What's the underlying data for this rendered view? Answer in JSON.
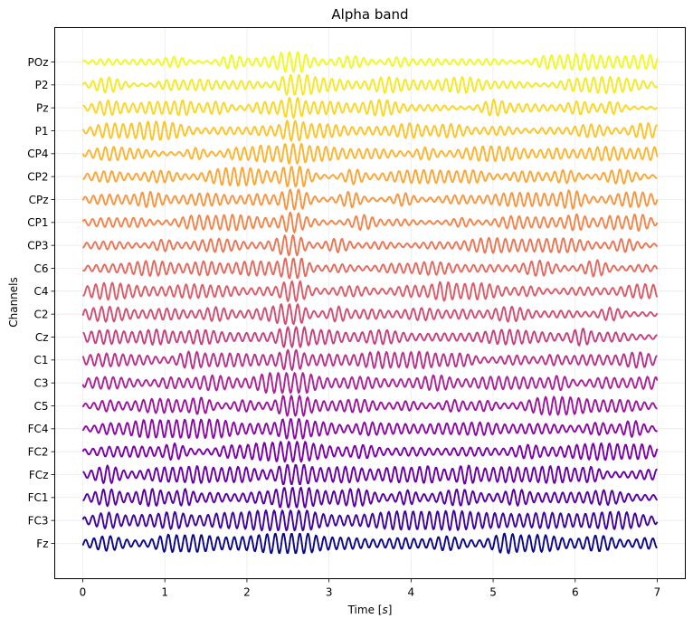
{
  "chart_data": {
    "type": "line",
    "title": "Alpha band",
    "xlabel_main": "Time [",
    "xlabel_italic": "s",
    "xlabel_end": "]",
    "ylabel": "Channels",
    "xlim": [
      -0.35,
      7.2
    ],
    "x_ticks": [
      0,
      1,
      2,
      3,
      4,
      5,
      6,
      7
    ],
    "x_tick_labels": [
      "0",
      "1",
      "2",
      "3",
      "4",
      "5",
      "6",
      "7"
    ],
    "grid": true,
    "colormap": "plasma",
    "sample_rate_hz": 100,
    "duration_s": 7,
    "frequency_hz": 10,
    "common_burst_s": 2.55,
    "channels": [
      "POz",
      "P2",
      "Pz",
      "P1",
      "CP4",
      "CP2",
      "CPz",
      "CP1",
      "CP3",
      "C6",
      "C4",
      "C2",
      "Cz",
      "C1",
      "C3",
      "C5",
      "FC4",
      "FC2",
      "FCz",
      "FC1",
      "FC3",
      "Fz"
    ],
    "series_colors": [
      "#f0f921",
      "#f5e926",
      "#fbd724",
      "#fdc328",
      "#fdb42f",
      "#fca636",
      "#f89540",
      "#f3854b",
      "#eb7655",
      "#e4695e",
      "#db5c68",
      "#d14e72",
      "#c5407e",
      "#b93289",
      "#ab2494",
      "#9c179e",
      "#8b0aa5",
      "#7a02a8",
      "#6900a8",
      "#5601a4",
      "#3f049c",
      "#0d0887"
    ]
  }
}
